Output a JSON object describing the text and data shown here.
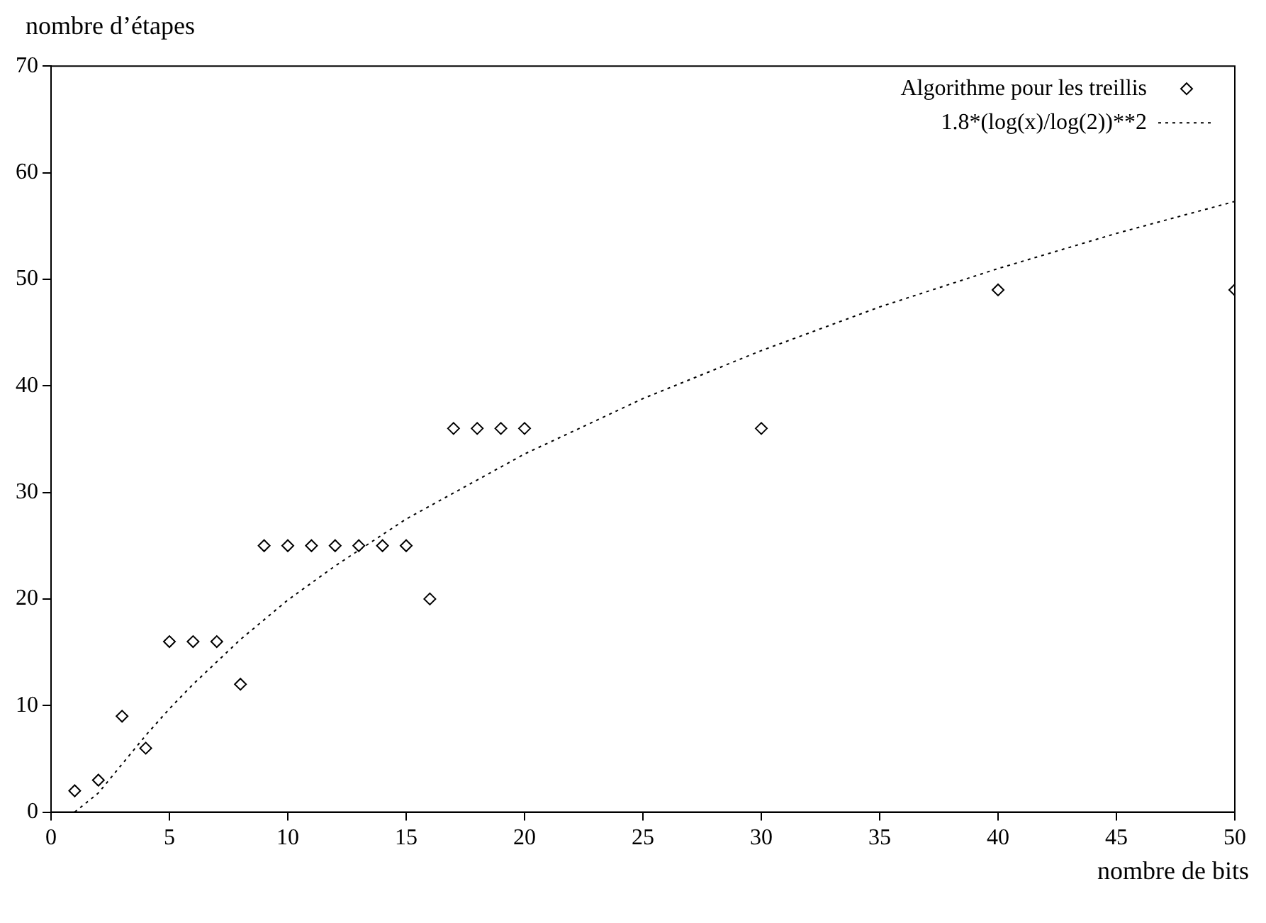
{
  "chart_data": {
    "type": "scatter",
    "xlabel": "nombre de bits",
    "ylabel": "nombre d’étapes",
    "xlim": [
      0,
      50
    ],
    "xticks": [
      0,
      5,
      10,
      15,
      20,
      25,
      30,
      35,
      40,
      45,
      50
    ],
    "ylim": [
      0,
      70
    ],
    "yticks": [
      0,
      10,
      20,
      30,
      40,
      50,
      60,
      70
    ],
    "grid": false,
    "legend": "top right",
    "series": [
      {
        "name": "Algorithme pour les treillis",
        "color": "#000000",
        "marker": "diamond",
        "x": [
          1,
          2,
          3,
          4,
          5,
          6,
          7,
          8,
          9,
          10,
          11,
          12,
          13,
          14,
          15,
          16,
          17,
          18,
          19,
          20,
          30,
          40,
          50
        ],
        "values": [
          2,
          3,
          9,
          6,
          16,
          16,
          16,
          12,
          25,
          25,
          25,
          25,
          25,
          25,
          25,
          20,
          36,
          36,
          36,
          36,
          36,
          49,
          49
        ]
      },
      {
        "name": "1.8*(log(x)/log(2))**2",
        "type": "line",
        "color": "#000000",
        "marker": "none",
        "line_style": "dotted",
        "x": [
          1,
          2,
          3,
          4,
          5,
          6,
          8,
          10,
          12,
          15,
          20,
          25,
          30,
          35,
          40,
          45,
          50
        ],
        "values": [
          0,
          1.8,
          4.5,
          7.2,
          9.7,
          12,
          16.2,
          19.9,
          23.1,
          27.5,
          33.6,
          38.8,
          43.3,
          47.4,
          51,
          54.3,
          57.3
        ]
      }
    ]
  }
}
